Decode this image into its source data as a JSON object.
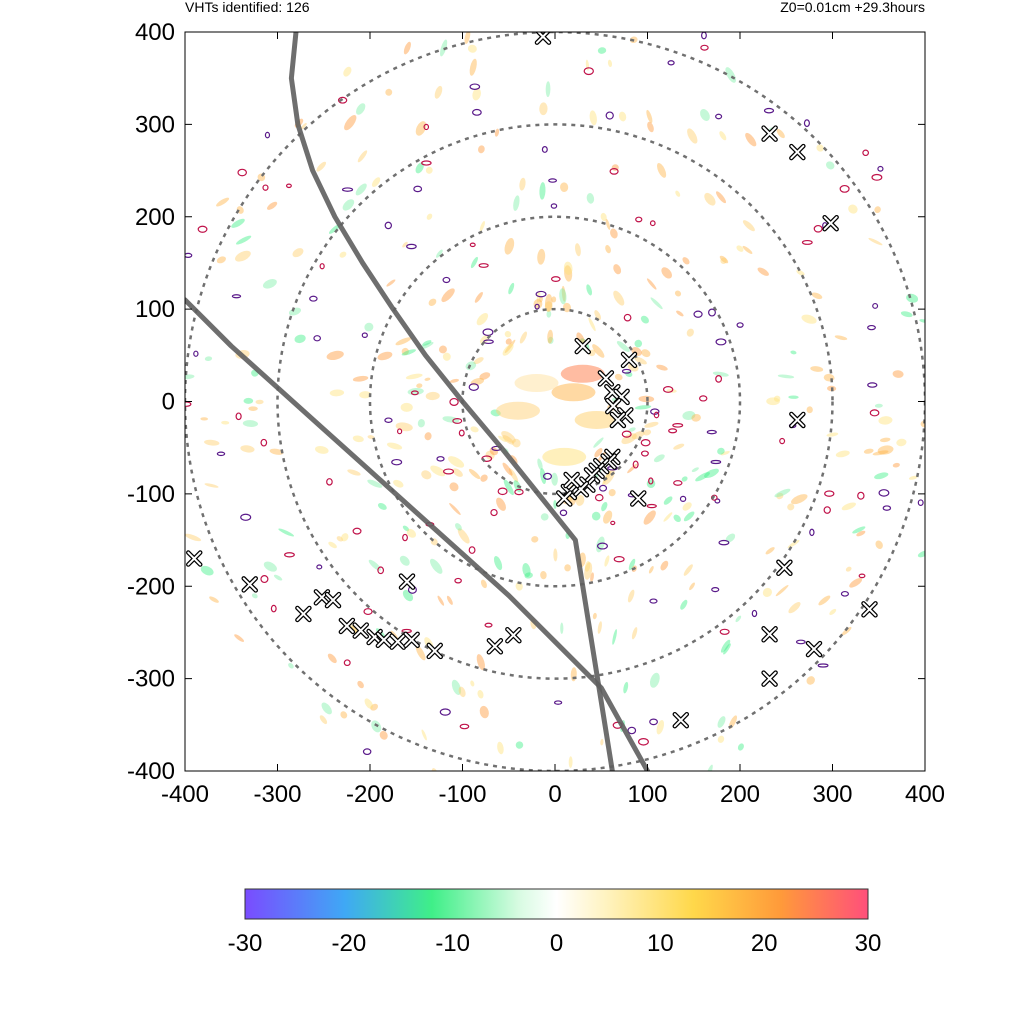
{
  "header": {
    "left": "VHTs identified: 126",
    "right": "Z0=0.01cm  +29.3hours"
  },
  "chart_data": {
    "type": "scatter",
    "title": "",
    "xlabel": "",
    "ylabel": "",
    "xlim": [
      -400,
      400
    ],
    "ylim": [
      -400,
      400
    ],
    "x_ticks": [
      -400,
      -300,
      -200,
      -100,
      0,
      100,
      200,
      300,
      400
    ],
    "y_ticks": [
      400,
      300,
      200,
      100,
      0,
      -100,
      -200,
      -300,
      -400
    ],
    "x_tick_labels": [
      "-400",
      "-300",
      "-200",
      "-100",
      "0",
      "100",
      "200",
      "300",
      "400"
    ],
    "y_tick_labels": [
      "400",
      "300",
      "200",
      "100",
      "0",
      "-100",
      "-200",
      "-300",
      "-400"
    ],
    "range_rings": [
      100,
      200,
      300,
      400
    ],
    "tracks": [
      {
        "name": "",
        "x": [
          -280,
          -285,
          -278,
          -262,
          -238,
          -208,
          -175,
          -140,
          -100,
          -58,
          -18,
          22,
          62
        ],
        "y": [
          400,
          350,
          300,
          250,
          200,
          150,
          100,
          50,
          0,
          -50,
          -100,
          -150,
          -400
        ]
      },
      {
        "name": "",
        "x": [
          -400,
          -350,
          -300,
          -250,
          -200,
          -150,
          -100,
          -50,
          0,
          50,
          100
        ],
        "y": [
          110,
          60,
          15,
          -30,
          -75,
          -120,
          -165,
          -210,
          -260,
          -310,
          -400
        ]
      }
    ],
    "vht_points": {
      "x": [
        -13,
        30,
        80,
        55,
        62,
        72,
        63,
        76,
        68,
        62,
        58,
        50,
        45,
        40,
        35,
        28,
        15,
        10,
        18,
        90,
        232,
        262,
        298,
        262,
        248,
        280,
        340,
        232,
        232,
        136,
        -390,
        -330,
        -252,
        -240,
        -272,
        -225,
        -210,
        -195,
        -185,
        -170,
        -160,
        -130,
        -155,
        -65,
        -45
      ],
      "y": [
        395,
        60,
        45,
        25,
        10,
        5,
        -5,
        -15,
        -20,
        -60,
        -65,
        -70,
        -75,
        -80,
        -90,
        -95,
        -98,
        -105,
        -85,
        -105,
        290,
        270,
        193,
        -20,
        -180,
        -268,
        -225,
        -252,
        -300,
        -345,
        -170,
        -198,
        -212,
        -215,
        -230,
        -243,
        -248,
        -255,
        -258,
        -260,
        -195,
        -270,
        -258,
        -265,
        -253
      ]
    },
    "colorbar": {
      "min": -30,
      "max": 30,
      "ticks": [
        -30,
        -20,
        -10,
        0,
        10,
        20,
        30
      ],
      "tick_labels": [
        "-30",
        "-20",
        "-10",
        "0",
        "10",
        "20",
        "30"
      ],
      "colors": [
        "#7a4cff",
        "#3fc4f5",
        "#3fef88",
        "#ffffff",
        "#ffe27a",
        "#ff9a3a",
        "#ff4f7b"
      ]
    },
    "grid": false,
    "legend": "none"
  }
}
